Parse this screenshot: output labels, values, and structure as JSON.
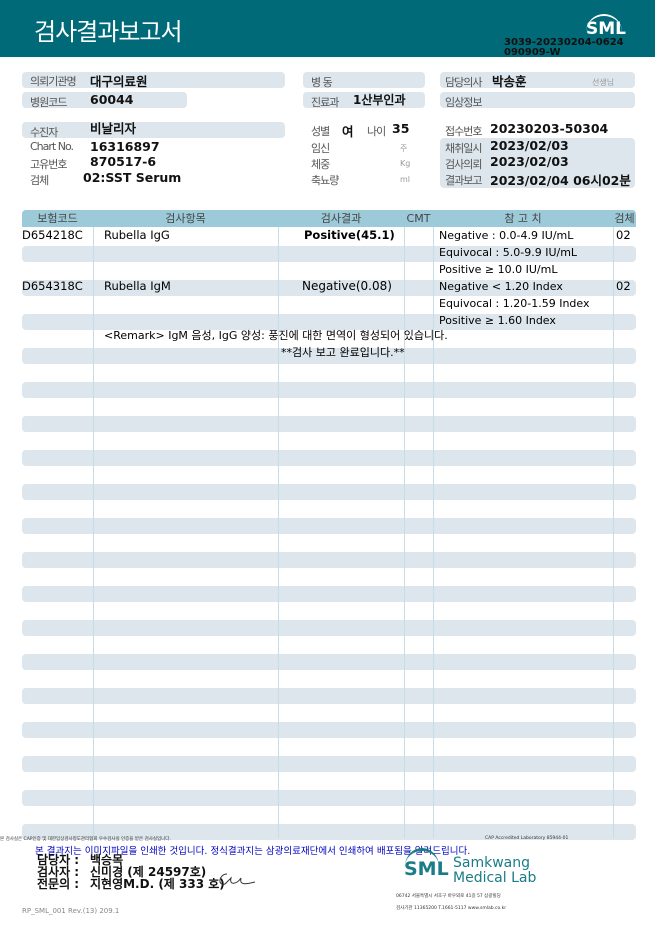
{
  "header": {
    "title": "검사결과보고서",
    "logo": "SML",
    "report_id_line1": "3039-20230204-0624",
    "report_id_line2": "090909-W"
  },
  "info": {
    "institution_label": "의뢰기관명",
    "institution": "대구의료원",
    "hospital_code_label": "병원코드",
    "hospital_code": "60044",
    "patient_label": "수진자",
    "patient": "비날리자",
    "chart_label": "Chart No.",
    "chart": "16316897",
    "unique_label": "고유번호",
    "unique": "870517-6",
    "specimen_label": "검체",
    "specimen": "02:SST Serum",
    "ward_label": "병 동",
    "ward": "",
    "dept_label": "진료과",
    "dept": "1산부인과",
    "sex_label": "성별",
    "sex": "여",
    "age_label": "나이",
    "age": "35",
    "pregnancy_label": "임신",
    "pregnancy_unit": "주",
    "weight_label": "체중",
    "weight_unit": "Kg",
    "urine_label": "축뇨량",
    "urine_unit": "ml",
    "doctor_label": "담당의사",
    "doctor": "박송훈",
    "doctor_suffix": "선생님",
    "clinical_label": "임상정보",
    "clinical": "",
    "receipt_label": "접수번호",
    "receipt": "20230203-50304",
    "collect_label": "채취일시",
    "collect": "2023/02/03",
    "request_label": "검사의뢰",
    "request": "2023/02/03",
    "report_label": "결과보고",
    "report": "2023/02/04 06시02분"
  },
  "table": {
    "headers": [
      "보험코드",
      "검사항목",
      "검사결과",
      "CMT",
      "참 고 치",
      "검체"
    ],
    "rows": [
      {
        "code": "D654218C",
        "item": "Rubella IgG",
        "result": "Positive(45.1)",
        "ref": [
          "Negative : 0.0-4.9 IU/mL",
          "Equivocal : 5.0-9.9 IU/mL",
          "Positive ≥ 10.0 IU/mL"
        ],
        "specimen": "02"
      },
      {
        "code": "D654318C",
        "item": "Rubella IgM",
        "result": "Negative(0.08)",
        "ref": [
          "Negative < 1.20 Index",
          "Equivocal : 1.20-1.59 Index",
          "Positive ≥ 1.60 Index"
        ],
        "specimen": "02"
      }
    ],
    "remark": "<Remark> IgM 음성, IgG 양성: 풍진에 대한 면역이 형성되어 있습니다.",
    "complete": "**검사  보고  완료입니다.**"
  },
  "footer": {
    "cert_note": "본 검사실은 CAP인증 및 대한임상검사정도관리협회 우수검사실 인증을 받은 검사실입니다.",
    "cap": "CAP Accredited Laboratory 85944-01",
    "notice": "본 결과지는 이미지파일을 인쇄한 것입니다. 정식결과지는 삼광의료재단에서 인쇄하여 배포됨을 알려드립니다.",
    "manager_label": "담당자 :",
    "manager": "백승목",
    "tester_label": "검사자 :",
    "tester": "신미경 (제 24597호)",
    "specialist_label": "전문의 :",
    "specialist": "지현영M.D. (제 333 호)",
    "lab_logo": "SML",
    "lab_name1": "Samkwang",
    "lab_name2": "Medical Lab",
    "address": "06742 서울특별시 서초구 바우뫼로 41길 57 삼광빌딩",
    "contact": "검사기관 11365200 T.1661-5117 www.smlab.co.kr",
    "form_id": "RP_SML_001 Rev.(13) 209.1"
  }
}
